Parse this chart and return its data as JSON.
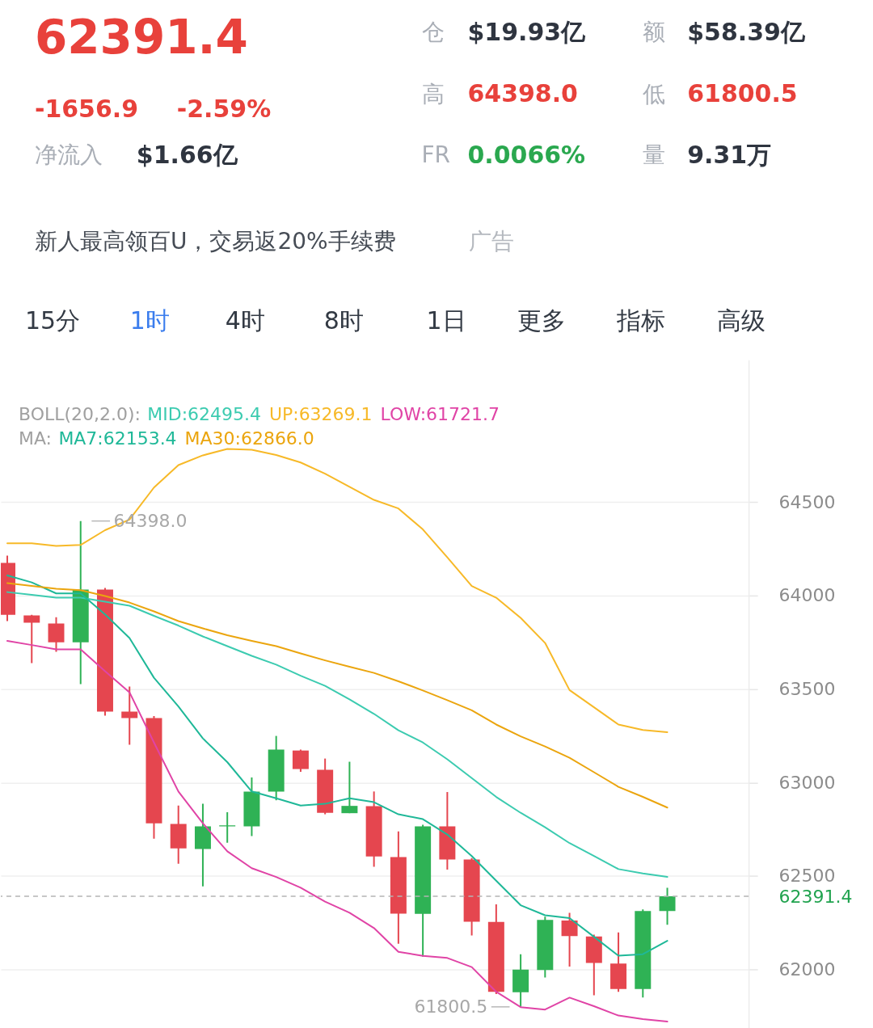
{
  "chart_data": [
    {
      "type": "other",
      "title": "62391.4",
      "annotations": [
        "仓",
        "$19.93亿",
        "额",
        "$58.39亿",
        "-1656.9",
        "-2.59%",
        "高",
        "64398.0",
        "低",
        "61800.5",
        "净流入",
        "$1.66亿",
        "FR",
        "0.0066%",
        "量",
        "9.31万",
        "新人最高领百U，交易返20%手续费",
        "广告",
        "15分",
        "1时",
        "4时",
        "8时",
        "1日",
        "更多",
        "指标",
        "高级"
      ]
    },
    {
      "type": "candlestick",
      "categories": [
        null,
        null,
        null,
        null,
        null,
        null,
        null,
        null,
        null,
        null,
        null,
        null,
        null,
        null,
        null,
        null,
        null,
        null,
        null,
        null,
        null,
        null,
        null,
        null,
        null,
        null,
        null,
        null
      ],
      "ohlc": [
        [
          64174,
          64213,
          63863,
          63897
        ],
        [
          63893,
          63897,
          63638,
          63854
        ],
        [
          63850,
          63884,
          63699,
          63750
        ],
        [
          63750,
          64398.0,
          63526,
          64031
        ],
        [
          64031,
          64040,
          63357,
          63379
        ],
        [
          63379,
          63513,
          63202,
          63344
        ],
        [
          63344,
          63355,
          62700,
          62782
        ],
        [
          62778,
          62877,
          62566,
          62648
        ],
        [
          62644,
          62886,
          62445,
          62765
        ],
        [
          62765,
          62841,
          62678,
          62771
        ],
        [
          62765,
          63027,
          62714,
          62951
        ],
        [
          62951,
          63249,
          62905,
          63176
        ],
        [
          63171,
          63176,
          63057,
          63072
        ],
        [
          63068,
          63128,
          62830,
          62838
        ],
        [
          62836,
          63111,
          62836,
          62875
        ],
        [
          62873,
          62952,
          62549,
          62605
        ],
        [
          62601,
          62739,
          62138,
          62299
        ],
        [
          62298,
          62774,
          62069,
          62765
        ],
        [
          62765,
          62949,
          62534,
          62588
        ],
        [
          62588,
          62596,
          62182,
          62256
        ],
        [
          62255,
          62349,
          61869,
          61881
        ],
        [
          61879,
          62082,
          61800.5,
          62000
        ],
        [
          61997,
          62283,
          61958,
          62265
        ],
        [
          62262,
          62303,
          62016,
          62179
        ],
        [
          62177,
          62186,
          61862,
          62035
        ],
        [
          62032,
          62198,
          61881,
          61896
        ],
        [
          61896,
          62321,
          61851,
          62313
        ],
        [
          62313,
          62437,
          62239,
          62391.4
        ]
      ],
      "colors": [
        "#e5464f",
        "#e5464f",
        "#e5464f",
        "#2fb255",
        "#e5464f",
        "#e5464f",
        "#e5464f",
        "#e5464f",
        "#2fb255",
        "#2fb255",
        "#2fb255",
        "#2fb255",
        "#e5464f",
        "#e5464f",
        "#2fb255",
        "#e5464f",
        "#e5464f",
        "#2fb255",
        "#e5464f",
        "#e5464f",
        "#e5464f",
        "#2fb255",
        "#2fb255",
        "#e5464f",
        "#e5464f",
        "#e5464f",
        "#2fb255",
        "#2fb255"
      ],
      "series": [
        {
          "name": "MID:62495.4",
          "type": "line",
          "color": "#3ccbb0",
          "values": [
            64018,
            64003,
            63988,
            63988,
            63967,
            63945,
            63891,
            63839,
            63781,
            63729,
            63677,
            63630,
            63571,
            63517,
            63444,
            63367,
            63279,
            63214,
            63124,
            63024,
            62923,
            62838,
            62761,
            62676,
            62607,
            62537,
            62514,
            62495.4
          ]
        },
        {
          "name": "UP:63269.1",
          "type": "line",
          "color": "#f7b928",
          "values": [
            64279,
            64279,
            64265,
            64270,
            64349,
            64406,
            64577,
            64697,
            64749,
            64783,
            64779,
            64751,
            64711,
            64651,
            64581,
            64511,
            64465,
            64353,
            64204,
            64050,
            63988,
            63880,
            63746,
            63494,
            63402,
            63310,
            63281,
            63269.1
          ]
        },
        {
          "name": "LOW:61721.7",
          "type": "line",
          "color": "#e044a6",
          "values": [
            63757,
            63735,
            63712,
            63712,
            63595,
            63482,
            63214,
            62952,
            62782,
            62632,
            62542,
            62495,
            62438,
            62363,
            62304,
            62222,
            62095,
            62073,
            62062,
            62013,
            61881,
            61799,
            61786,
            61850,
            61804,
            61754,
            61735,
            61721.7
          ]
        },
        {
          "name": "MA7:62153.4",
          "type": "line",
          "color": "#1fb898",
          "values": [
            64107,
            64070,
            64011,
            64011,
            63899,
            63772,
            63560,
            63407,
            63236,
            63109,
            62952,
            62916,
            62877,
            62886,
            62916,
            62895,
            62830,
            62804,
            62722,
            62607,
            62475,
            62344,
            62290,
            62275,
            62175,
            62074,
            62082,
            62153.4
          ]
        },
        {
          "name": "MA30:62866.0",
          "type": "line",
          "color": "#eba50e",
          "values": [
            64066,
            64051,
            64036,
            64028,
            63997,
            63962,
            63915,
            63863,
            63824,
            63787,
            63757,
            63729,
            63690,
            63653,
            63619,
            63586,
            63541,
            63492,
            63440,
            63386,
            63310,
            63247,
            63193,
            63132,
            63055,
            62977,
            62923,
            62866.0
          ]
        }
      ],
      "ylim": [
        61690,
        65260
      ],
      "yticks": [
        62000,
        62391.4,
        62500,
        63000,
        63500,
        64000,
        64500
      ],
      "grid": "y",
      "legend": "top left",
      "tick_labels": "y",
      "line_style": "solid",
      "ref_lines": [
        {
          "axis": "y",
          "value": 62391.4,
          "color": "#b4b4b4",
          "line_style": "dashed"
        }
      ],
      "annotations": [
        "BOLL(20,2.0):",
        "MA:",
        "64398.0",
        "61800.5"
      ]
    }
  ]
}
